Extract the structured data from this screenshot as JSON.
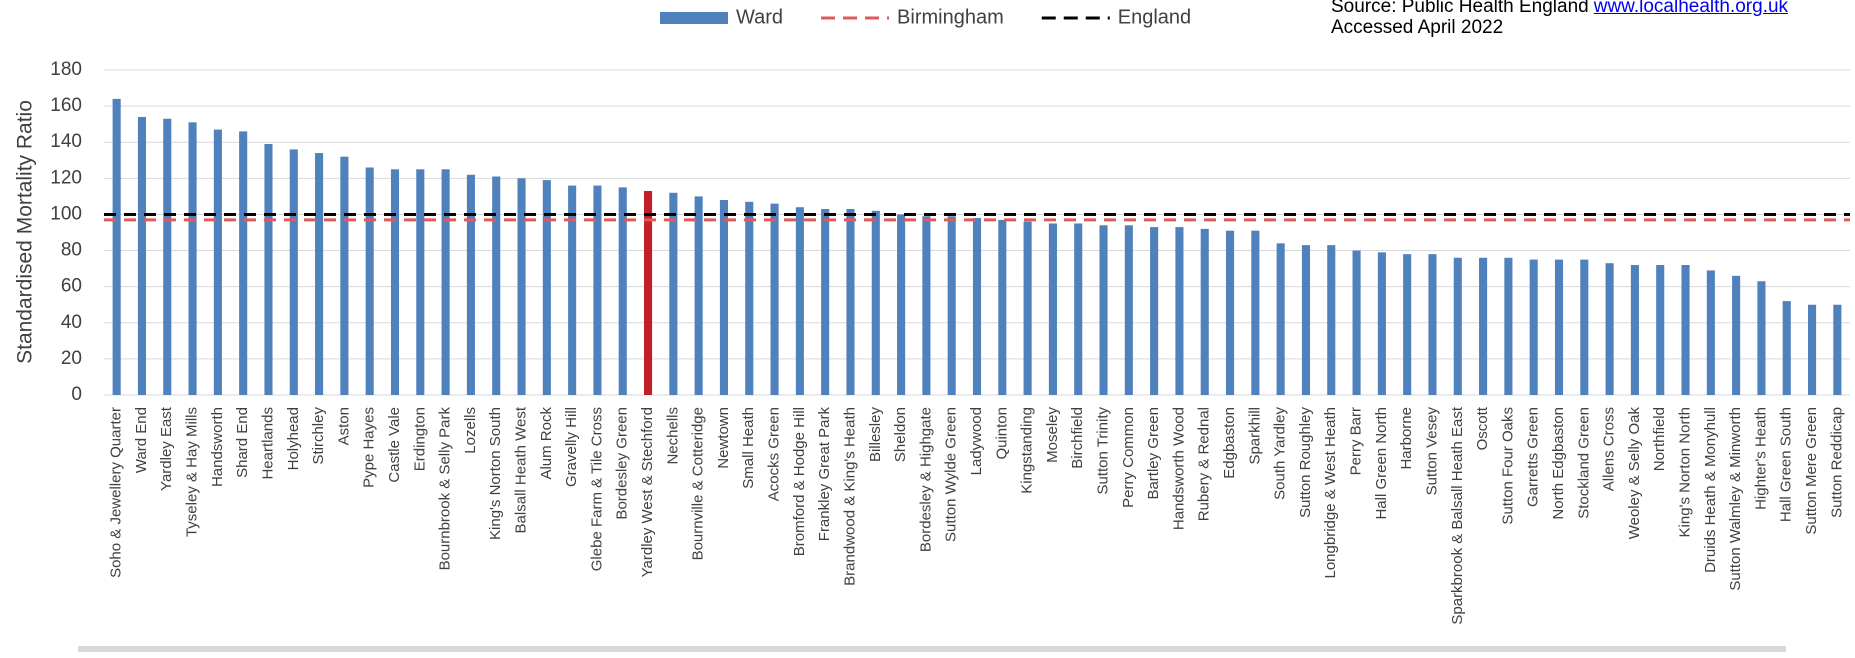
{
  "chart_data": {
    "type": "bar",
    "y_label": "Standardised Mortality Ratio",
    "source": {
      "text": "Source: Public Health England",
      "link": "www.localhealth.org.uk",
      "accessed": "Accessed April 2022"
    },
    "categories": [
      "Soho & Jewellery Quarter",
      "Ward End",
      "Yardley East",
      "Tyseley & Hay Mills",
      "Handsworth",
      "Shard End",
      "Heartlands",
      "Holyhead",
      "Stirchley",
      "Aston",
      "Pype Hayes",
      "Castle Vale",
      "Erdington",
      "Bournbrook & Selly Park",
      "Lozells",
      "King's Norton South",
      "Balsall Heath West",
      "Alum Rock",
      "Gravelly Hill",
      "Glebe Farm & Tile Cross",
      "Bordesley Green",
      "Yardley West & Stechford",
      "Nechells",
      "Bournville & Cotteridge",
      "Newtown",
      "Small Heath",
      "Acocks Green",
      "Bromford & Hodge Hill",
      "Frankley Great Park",
      "Brandwood & King's Heath",
      "Billesley",
      "Sheldon",
      "Bordesley & Highgate",
      "Sutton Wylde Green",
      "Ladywood",
      "Quinton",
      "Kingstanding",
      "Moseley",
      "Birchfield",
      "Sutton Trinity",
      "Perry Common",
      "Bartley Green",
      "Handsworth Wood",
      "Rubery & Rednal",
      "Edgbaston",
      "Sparkhill",
      "South Yardley",
      "Sutton Roughley",
      "Longbridge & West Heath",
      "Perry Barr",
      "Hall Green North",
      "Harborne",
      "Sutton Vesey",
      "Sparkbrook & Balsall Heath East",
      "Oscott",
      "Sutton Four Oaks",
      "Garretts Green",
      "North Edgbaston",
      "Stockland Green",
      "Allens Cross",
      "Weoley & Selly Oak",
      "Northfield",
      "King's Norton North",
      "Druids Heath & Monyhull",
      "Sutton Walmley & Minworth",
      "Highter's Heath",
      "Hall Green South",
      "Sutton Mere Green",
      "Sutton Reddicap"
    ],
    "series": [
      {
        "name": "Ward",
        "color": "#4f81bd",
        "values": [
          164,
          154,
          153,
          151,
          147,
          146,
          139,
          136,
          134,
          132,
          126,
          125,
          125,
          125,
          122,
          121,
          120,
          119,
          116,
          116,
          115,
          113,
          112,
          110,
          108,
          107,
          106,
          104,
          103,
          103,
          102,
          100,
          99,
          99,
          98,
          97,
          96,
          95,
          95,
          94,
          94,
          93,
          93,
          92,
          91,
          91,
          84,
          83,
          83,
          80,
          79,
          78,
          78,
          76,
          76,
          76,
          75,
          75,
          75,
          73,
          72,
          72,
          72,
          69,
          66,
          63,
          52,
          50,
          50
        ],
        "colors": [
          "#4f81bd",
          "#4f81bd",
          "#4f81bd",
          "#4f81bd",
          "#4f81bd",
          "#4f81bd",
          "#4f81bd",
          "#4f81bd",
          "#4f81bd",
          "#4f81bd",
          "#4f81bd",
          "#4f81bd",
          "#4f81bd",
          "#4f81bd",
          "#4f81bd",
          "#4f81bd",
          "#4f81bd",
          "#4f81bd",
          "#4f81bd",
          "#4f81bd",
          "#4f81bd",
          "#c0202a",
          "#4f81bd",
          "#4f81bd",
          "#4f81bd",
          "#4f81bd",
          "#4f81bd",
          "#4f81bd",
          "#4f81bd",
          "#4f81bd",
          "#4f81bd",
          "#4f81bd",
          "#4f81bd",
          "#4f81bd",
          "#4f81bd",
          "#4f81bd",
          "#4f81bd",
          "#4f81bd",
          "#4f81bd",
          "#4f81bd",
          "#4f81bd",
          "#4f81bd",
          "#4f81bd",
          "#4f81bd",
          "#4f81bd",
          "#4f81bd",
          "#4f81bd",
          "#4f81bd",
          "#4f81bd",
          "#4f81bd",
          "#4f81bd",
          "#4f81bd",
          "#4f81bd",
          "#4f81bd",
          "#4f81bd",
          "#4f81bd",
          "#4f81bd",
          "#4f81bd",
          "#4f81bd",
          "#4f81bd",
          "#4f81bd",
          "#4f81bd",
          "#4f81bd",
          "#4f81bd",
          "#4f81bd",
          "#4f81bd",
          "#4f81bd",
          "#4f81bd",
          "#4f81bd"
        ]
      }
    ],
    "reference_lines": [
      {
        "name": "Birmingham",
        "color": "#e05a5a",
        "value": 97
      },
      {
        "name": "England",
        "color": "#000000",
        "value": 100
      }
    ],
    "ylim": [
      0,
      180
    ],
    "yticks": [
      0,
      20,
      40,
      60,
      80,
      100,
      120,
      140,
      160,
      180
    ],
    "grid": true
  }
}
